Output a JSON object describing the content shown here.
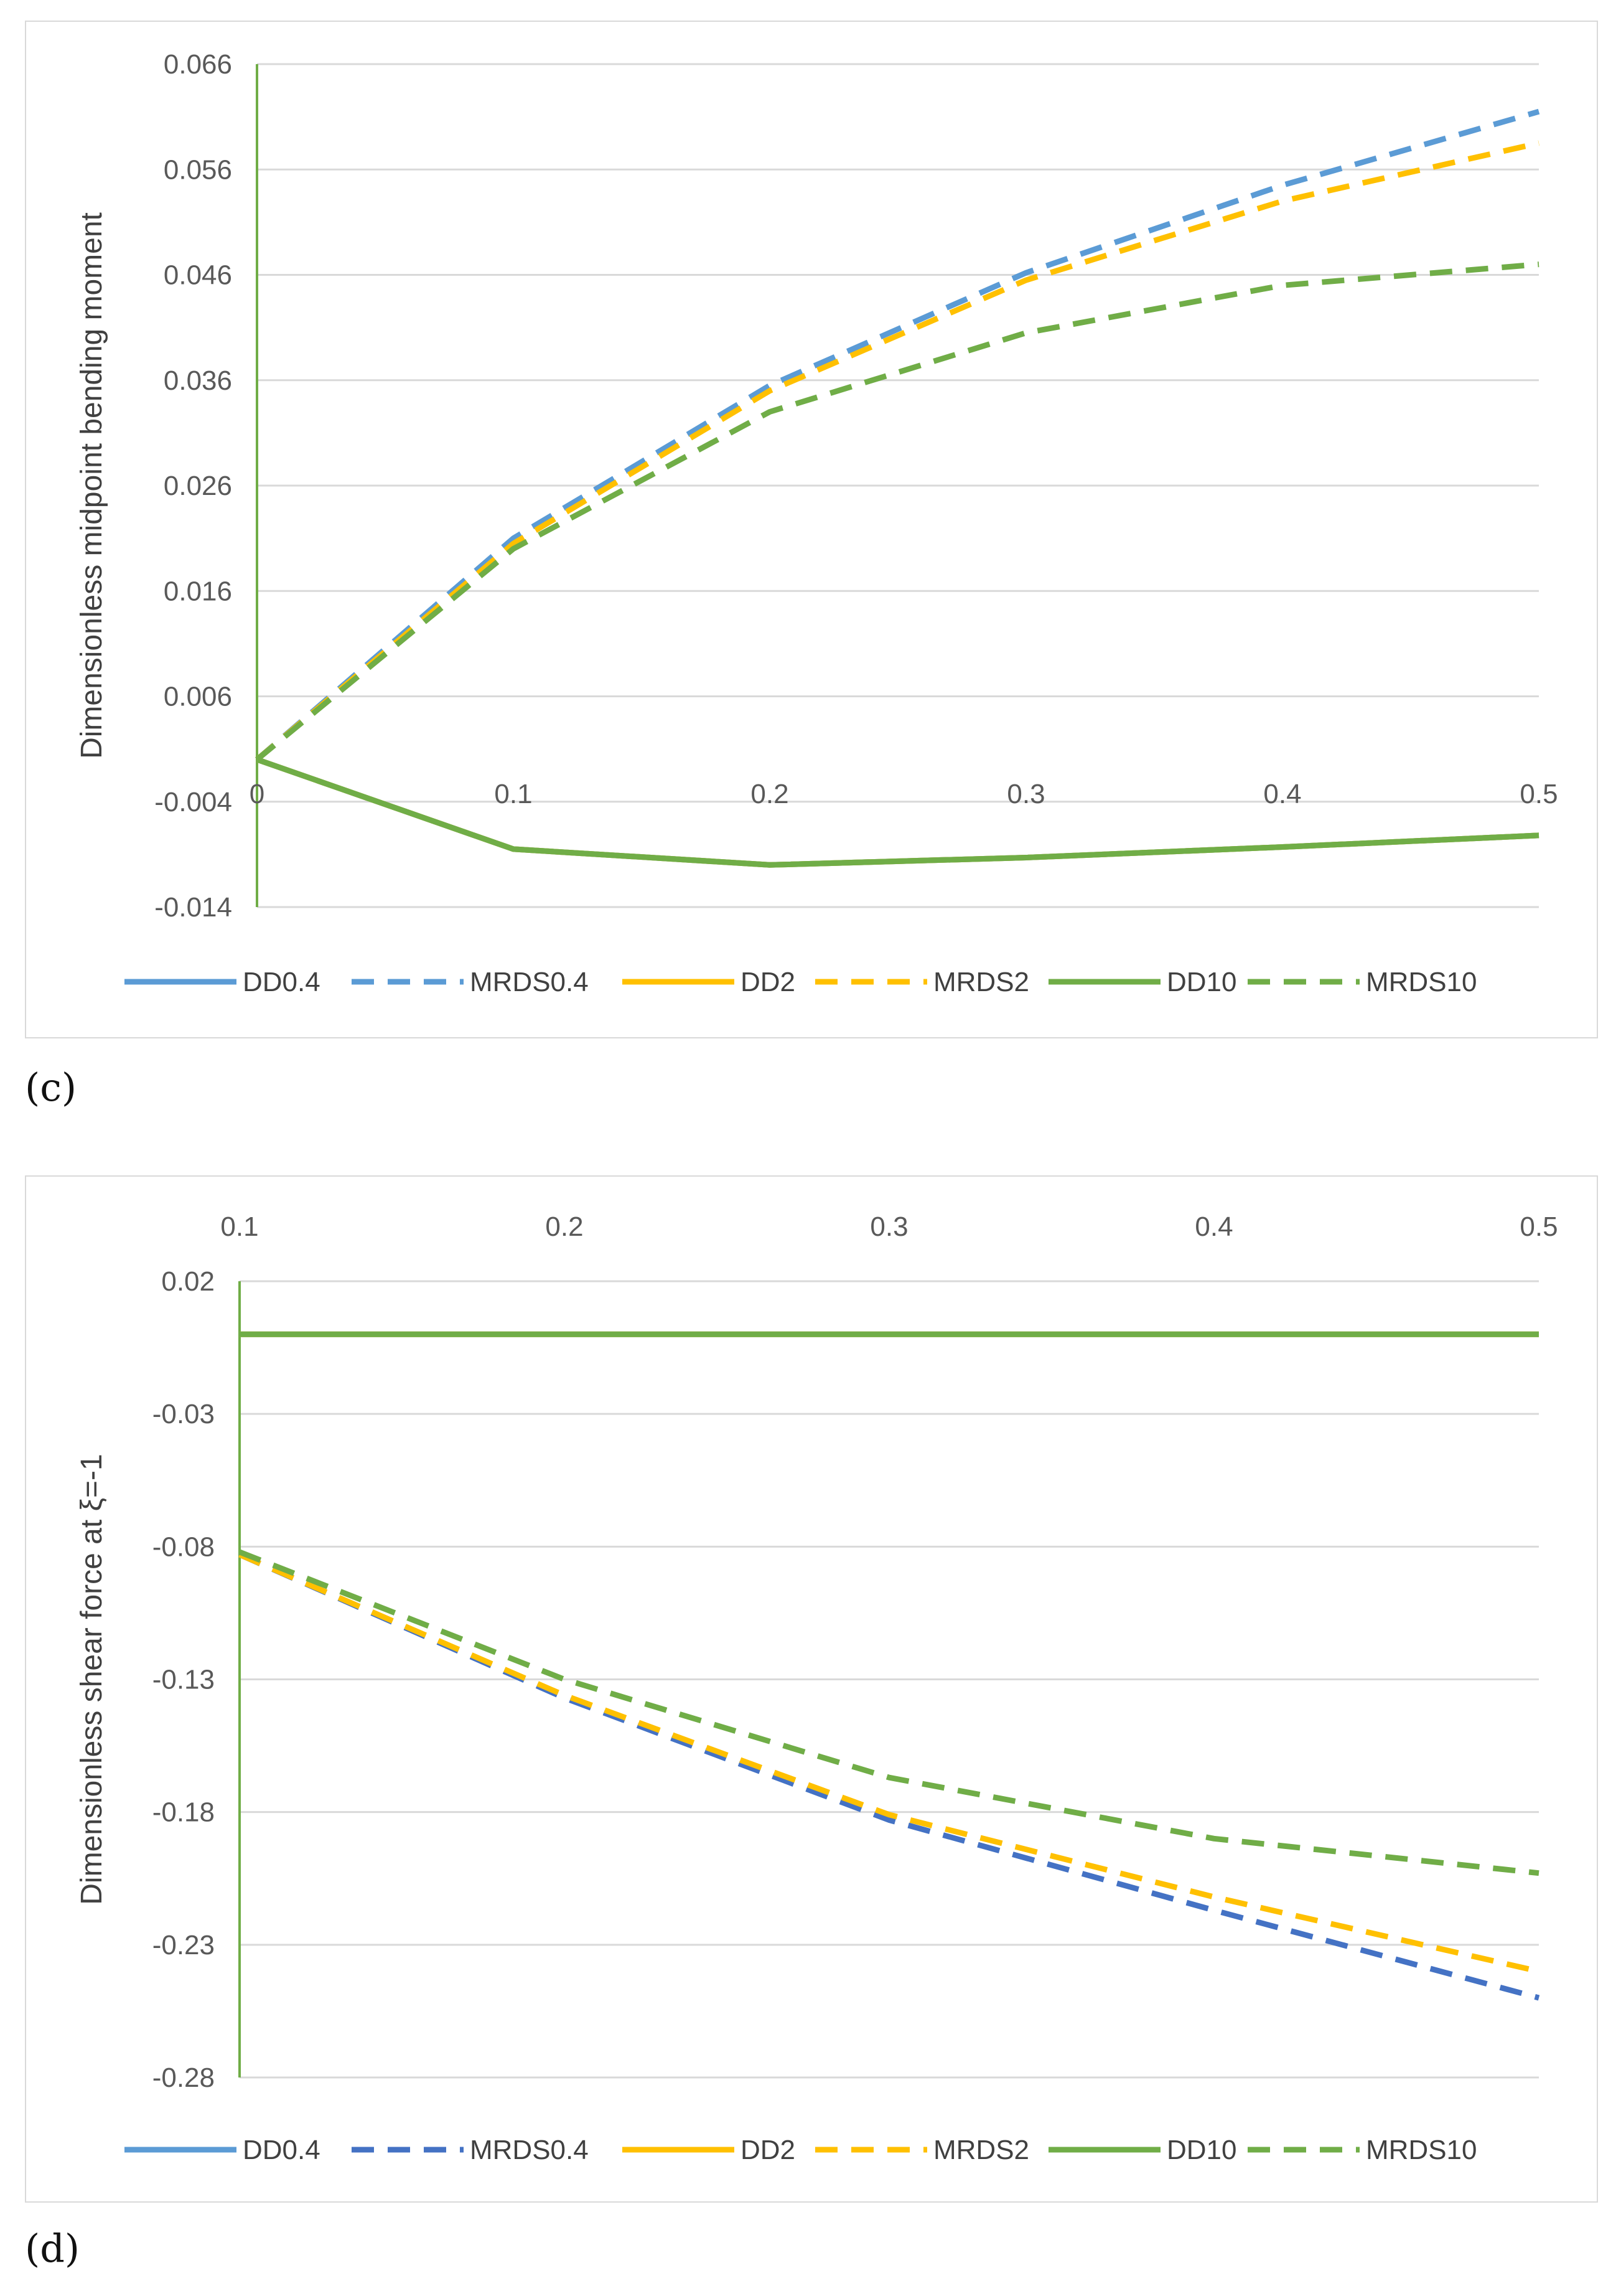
{
  "panels": {
    "c": {
      "label": "(c)"
    },
    "d": {
      "label": "(d)"
    }
  },
  "chart_data": [
    {
      "id": "c",
      "type": "line",
      "title": "",
      "xlabel": "",
      "ylabel": "Dimensionless midpoint bending moment",
      "x": [
        0,
        0.1,
        0.2,
        0.3,
        0.4,
        0.5
      ],
      "xtick_labels": [
        "0",
        "0.1",
        "0.2",
        "0.3",
        "0.4",
        "0.5"
      ],
      "xlim": [
        0,
        0.5
      ],
      "ylim": [
        -0.014,
        0.066
      ],
      "yticks": [
        -0.014,
        -0.004,
        0.006,
        0.016,
        0.026,
        0.036,
        0.046,
        0.056,
        0.066
      ],
      "ytick_labels": [
        "-0.014",
        "-0.004",
        "0.006",
        "0.016",
        "0.026",
        "0.036",
        "0.046",
        "0.056",
        "0.066"
      ],
      "x_axis_at": 0,
      "grid": true,
      "legend_position": "bottom",
      "series": [
        {
          "name": "DD0.4",
          "color": "#5B9BD5",
          "dash": false,
          "values": [
            0,
            -0.0085,
            -0.01,
            -0.0093,
            -0.0083,
            -0.0072
          ]
        },
        {
          "name": "MRDS0.4",
          "color": "#5B9BD5",
          "dash": true,
          "values": [
            0,
            0.021,
            0.0355,
            0.0462,
            0.0545,
            0.0615
          ]
        },
        {
          "name": "DD2",
          "color": "#FFC000",
          "dash": false,
          "values": [
            0,
            -0.0085,
            -0.01,
            -0.0093,
            -0.0083,
            -0.0072
          ]
        },
        {
          "name": "MRDS2",
          "color": "#FFC000",
          "dash": true,
          "values": [
            0,
            0.0205,
            0.035,
            0.0455,
            0.053,
            0.0585
          ]
        },
        {
          "name": "DD10",
          "color": "#70AD47",
          "dash": false,
          "values": [
            0,
            -0.0085,
            -0.01,
            -0.0093,
            -0.0083,
            -0.0072
          ]
        },
        {
          "name": "MRDS10",
          "color": "#70AD47",
          "dash": true,
          "values": [
            0,
            0.02,
            0.033,
            0.0405,
            0.045,
            0.047
          ]
        }
      ]
    },
    {
      "id": "d",
      "type": "line",
      "title": "",
      "xlabel": "",
      "ylabel": "Dimensionless shear force at ξ=-1",
      "x": [
        0.1,
        0.2,
        0.3,
        0.4,
        0.5
      ],
      "xtick_labels": [
        "0.1",
        "0.2",
        "0.3",
        "0.4",
        "0.5"
      ],
      "xlim": [
        0.1,
        0.5
      ],
      "ylim": [
        -0.28,
        0.02
      ],
      "yticks": [
        -0.28,
        -0.23,
        -0.18,
        -0.13,
        -0.08,
        -0.03,
        0.02
      ],
      "ytick_labels": [
        "-0.28",
        "-0.23",
        "-0.18",
        "-0.13",
        "-0.08",
        "-0.03",
        "0.02"
      ],
      "x_axis_at": "top",
      "grid": true,
      "legend_position": "bottom",
      "series": [
        {
          "name": "DD0.4",
          "color": "#5B9BD5",
          "dash": false,
          "values": [
            0,
            0,
            0,
            0,
            0
          ]
        },
        {
          "name": "MRDS0.4",
          "color": "#4472C4",
          "dash": true,
          "values": [
            -0.083,
            -0.137,
            -0.183,
            -0.217,
            -0.25
          ]
        },
        {
          "name": "DD2",
          "color": "#FFC000",
          "dash": false,
          "values": [
            0,
            0,
            0,
            0,
            0
          ]
        },
        {
          "name": "MRDS2",
          "color": "#FFC000",
          "dash": true,
          "values": [
            -0.083,
            -0.136,
            -0.181,
            -0.212,
            -0.24
          ]
        },
        {
          "name": "DD10",
          "color": "#70AD47",
          "dash": false,
          "values": [
            0,
            0,
            0,
            0,
            0
          ]
        },
        {
          "name": "MRDS10",
          "color": "#70AD47",
          "dash": true,
          "values": [
            -0.082,
            -0.13,
            -0.167,
            -0.19,
            -0.203
          ]
        }
      ]
    }
  ]
}
